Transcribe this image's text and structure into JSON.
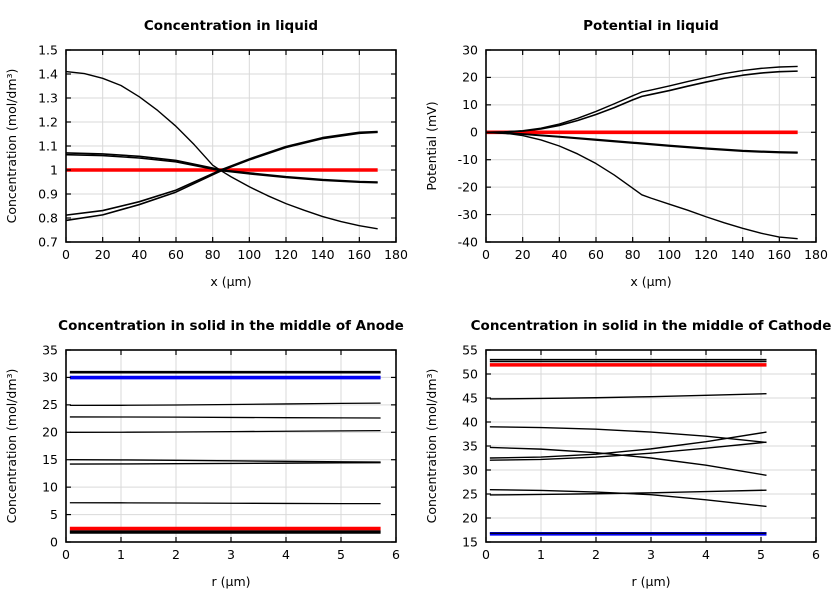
{
  "figure": {
    "background": "#ffffff",
    "layout": "2x2-plot-grid"
  },
  "colors": {
    "frame": "#000000",
    "grid": "#d9d9d9",
    "curve_black": "#000000",
    "reference_red": "#ff0000",
    "reference_blue": "#0202f5"
  },
  "chart_data": [
    {
      "id": "concentration-in-liquid",
      "type": "line",
      "title": "Concentration in liquid",
      "xlabel": "x (µm)",
      "ylabel": "Concentration (mol/dm³)",
      "xlim": [
        0,
        180
      ],
      "ylim": [
        0.7,
        1.5
      ],
      "xticks": [
        0,
        20,
        40,
        60,
        80,
        100,
        120,
        140,
        160,
        180
      ],
      "yticks": [
        0.7,
        0.8,
        0.9,
        1,
        1.1,
        1.2,
        1.3,
        1.4,
        1.5
      ],
      "grid": true,
      "legend": "none",
      "series": [
        {
          "name": "initial-reference",
          "color": "#ff0000",
          "width": 3.6,
          "x": [
            0,
            170
          ],
          "y": [
            1,
            1
          ]
        },
        {
          "name": "profile-late",
          "color": "#000000",
          "width": 1.4,
          "x": [
            0,
            10,
            20,
            30,
            40,
            50,
            60,
            70,
            80,
            85,
            90,
            100,
            110,
            120,
            130,
            140,
            150,
            160,
            170
          ],
          "y": [
            1.41,
            1.402,
            1.382,
            1.352,
            1.305,
            1.248,
            1.182,
            1.105,
            1.02,
            0.995,
            0.972,
            0.93,
            0.893,
            0.86,
            0.832,
            0.806,
            0.785,
            0.768,
            0.755
          ]
        },
        {
          "name": "profile-mid-a",
          "color": "#000000",
          "width": 1.6,
          "x": [
            0,
            20,
            40,
            60,
            80,
            85,
            100,
            120,
            140,
            160,
            170
          ],
          "y": [
            1.071,
            1.067,
            1.057,
            1.04,
            1.008,
            1.0,
            0.988,
            0.972,
            0.96,
            0.952,
            0.95
          ]
        },
        {
          "name": "profile-mid-b",
          "color": "#000000",
          "width": 1.6,
          "x": [
            0,
            20,
            40,
            60,
            80,
            85,
            100,
            120,
            140,
            160,
            170
          ],
          "y": [
            1.064,
            1.06,
            1.05,
            1.034,
            1.004,
            0.997,
            0.984,
            0.969,
            0.957,
            0.949,
            0.947
          ]
        },
        {
          "name": "profile-early-a",
          "color": "#000000",
          "width": 1.6,
          "x": [
            0,
            20,
            40,
            60,
            80,
            85,
            100,
            120,
            140,
            160,
            170
          ],
          "y": [
            0.812,
            0.831,
            0.868,
            0.916,
            0.985,
            1.002,
            1.046,
            1.098,
            1.135,
            1.157,
            1.16
          ]
        },
        {
          "name": "profile-early-b",
          "color": "#000000",
          "width": 1.6,
          "x": [
            0,
            20,
            40,
            60,
            80,
            85,
            100,
            120,
            140,
            160,
            170
          ],
          "y": [
            0.79,
            0.813,
            0.856,
            0.908,
            0.98,
            0.998,
            1.042,
            1.094,
            1.131,
            1.153,
            1.157
          ]
        }
      ]
    },
    {
      "id": "potential-in-liquid",
      "type": "line",
      "title": "Potential in liquid",
      "xlabel": "x (µm)",
      "ylabel": "Potential (mV)",
      "xlim": [
        0,
        180
      ],
      "ylim": [
        -40,
        30
      ],
      "xticks": [
        0,
        20,
        40,
        60,
        80,
        100,
        120,
        140,
        160,
        180
      ],
      "yticks": [
        -40,
        -30,
        -20,
        -10,
        0,
        10,
        20,
        30
      ],
      "grid": true,
      "legend": "none",
      "series": [
        {
          "name": "zero-reference",
          "color": "#ff0000",
          "width": 3.6,
          "x": [
            0,
            170
          ],
          "y": [
            0,
            0
          ]
        },
        {
          "name": "potential-rise-a",
          "color": "#000000",
          "width": 1.4,
          "x": [
            0,
            10,
            20,
            30,
            40,
            50,
            60,
            70,
            80,
            85,
            90,
            100,
            110,
            120,
            130,
            140,
            150,
            160,
            170
          ],
          "y": [
            0,
            0.15,
            0.6,
            1.5,
            3.0,
            5.1,
            7.6,
            10.4,
            13.3,
            14.7,
            15.4,
            16.9,
            18.5,
            20.0,
            21.4,
            22.5,
            23.3,
            23.8,
            24.0
          ]
        },
        {
          "name": "potential-rise-b",
          "color": "#000000",
          "width": 1.6,
          "x": [
            0,
            10,
            20,
            30,
            40,
            50,
            60,
            70,
            80,
            85,
            90,
            100,
            110,
            120,
            130,
            140,
            150,
            160,
            170
          ],
          "y": [
            0,
            0.1,
            0.45,
            1.2,
            2.5,
            4.3,
            6.5,
            9.0,
            11.8,
            13.1,
            13.8,
            15.2,
            16.8,
            18.3,
            19.7,
            20.8,
            21.6,
            22.1,
            22.3
          ]
        },
        {
          "name": "potential-shallow-a",
          "color": "#000000",
          "width": 1.7,
          "x": [
            0,
            20,
            40,
            60,
            80,
            100,
            120,
            140,
            160,
            170
          ],
          "y": [
            0,
            -0.7,
            -1.7,
            -2.8,
            -3.9,
            -5.0,
            -6.0,
            -6.9,
            -7.4,
            -7.5
          ]
        },
        {
          "name": "potential-shallow-b",
          "color": "#000000",
          "width": 1.7,
          "x": [
            0,
            20,
            40,
            60,
            80,
            100,
            120,
            140,
            160,
            170
          ],
          "y": [
            0,
            -0.6,
            -1.55,
            -2.6,
            -3.7,
            -4.8,
            -5.8,
            -6.7,
            -7.2,
            -7.3
          ]
        },
        {
          "name": "potential-deep",
          "color": "#000000",
          "width": 1.4,
          "x": [
            0,
            10,
            20,
            30,
            40,
            50,
            60,
            70,
            80,
            85,
            90,
            100,
            110,
            120,
            130,
            140,
            150,
            160,
            170
          ],
          "y": [
            0,
            -0.3,
            -1.2,
            -2.8,
            -5.0,
            -7.9,
            -11.4,
            -15.6,
            -20.4,
            -22.8,
            -24.0,
            -26.2,
            -28.4,
            -30.8,
            -33.0,
            -35.0,
            -36.8,
            -38.2,
            -38.8
          ]
        }
      ]
    },
    {
      "id": "concentration-solid-anode",
      "type": "line",
      "title": "Concentration in solid in the middle of Anode",
      "xlabel": "r (µm)",
      "ylabel": "Concentration (mol/dm³)",
      "xlim": [
        0,
        6
      ],
      "ylim": [
        0,
        35
      ],
      "xticks": [
        0,
        1,
        2,
        3,
        4,
        5,
        6
      ],
      "yticks": [
        0,
        5,
        10,
        15,
        20,
        25,
        30,
        35
      ],
      "grid": true,
      "legend": "none",
      "series": [
        {
          "name": "anode-level-31a",
          "color": "#000000",
          "width": 1.5,
          "x": [
            0.07,
            5.72
          ],
          "y": [
            31.05,
            31.05
          ]
        },
        {
          "name": "anode-level-31b",
          "color": "#000000",
          "width": 1.5,
          "x": [
            0.07,
            5.72
          ],
          "y": [
            30.85,
            30.85
          ]
        },
        {
          "name": "anode-blue-reference",
          "color": "#0202f5",
          "width": 3.6,
          "x": [
            0.07,
            5.72
          ],
          "y": [
            29.97,
            29.97
          ]
        },
        {
          "name": "anode-level-25",
          "color": "#000000",
          "width": 1.3,
          "x": [
            0.07,
            1,
            2,
            3,
            4,
            5,
            5.72
          ],
          "y": [
            24.9,
            24.92,
            24.98,
            25.07,
            25.17,
            25.27,
            25.32
          ]
        },
        {
          "name": "anode-level-23",
          "color": "#000000",
          "width": 1.3,
          "x": [
            0.07,
            1,
            2,
            3,
            4,
            5,
            5.72
          ],
          "y": [
            22.8,
            22.79,
            22.76,
            22.71,
            22.66,
            22.62,
            22.6
          ]
        },
        {
          "name": "anode-level-20",
          "color": "#000000",
          "width": 1.3,
          "x": [
            0.07,
            1,
            2,
            3,
            4,
            5,
            5.72
          ],
          "y": [
            20.0,
            20.01,
            20.05,
            20.12,
            20.19,
            20.26,
            20.3
          ]
        },
        {
          "name": "anode-level-15",
          "color": "#000000",
          "width": 1.4,
          "x": [
            0.07,
            1,
            2,
            3,
            4,
            5,
            5.72
          ],
          "y": [
            15.0,
            14.96,
            14.89,
            14.8,
            14.7,
            14.61,
            14.56
          ]
        },
        {
          "name": "anode-level-14",
          "color": "#000000",
          "width": 1.4,
          "x": [
            0.07,
            1,
            2,
            3,
            4,
            5,
            5.72
          ],
          "y": [
            14.2,
            14.23,
            14.28,
            14.33,
            14.38,
            14.43,
            14.46
          ]
        },
        {
          "name": "anode-level-7",
          "color": "#000000",
          "width": 1.3,
          "x": [
            0.07,
            1,
            2,
            3,
            4,
            5,
            5.72
          ],
          "y": [
            7.15,
            7.14,
            7.11,
            7.07,
            7.03,
            7.0,
            6.99
          ]
        },
        {
          "name": "anode-red-reference",
          "color": "#ff0000",
          "width": 3.6,
          "x": [
            0.07,
            5.72
          ],
          "y": [
            2.45,
            2.45
          ]
        },
        {
          "name": "anode-level-2.0",
          "color": "#000000",
          "width": 1.2,
          "x": [
            0.07,
            5.72
          ],
          "y": [
            2.02,
            2.02
          ]
        },
        {
          "name": "anode-level-1.8",
          "color": "#000000",
          "width": 1.2,
          "x": [
            0.07,
            5.72
          ],
          "y": [
            1.82,
            1.82
          ]
        },
        {
          "name": "anode-level-1.6",
          "color": "#000000",
          "width": 1.2,
          "x": [
            0.07,
            5.72
          ],
          "y": [
            1.62,
            1.62
          ]
        }
      ]
    },
    {
      "id": "concentration-solid-cathode",
      "type": "line",
      "title": "Concentration in solid in the middle of Cathode",
      "xlabel": "r (µm)",
      "ylabel": "Concentration (mol/dm³)",
      "xlim": [
        0,
        6
      ],
      "ylim": [
        15,
        55
      ],
      "xticks": [
        0,
        1,
        2,
        3,
        4,
        5,
        6
      ],
      "yticks": [
        15,
        20,
        25,
        30,
        35,
        40,
        45,
        50,
        55
      ],
      "grid": true,
      "legend": "none",
      "series": [
        {
          "name": "cathode-level-53",
          "color": "#000000",
          "width": 1.5,
          "x": [
            0.07,
            5.1
          ],
          "y": [
            53.0,
            53.0
          ]
        },
        {
          "name": "cathode-level-52.6",
          "color": "#000000",
          "width": 1.5,
          "x": [
            0.07,
            5.1
          ],
          "y": [
            52.6,
            52.6
          ]
        },
        {
          "name": "cathode-red-reference",
          "color": "#ff0000",
          "width": 3.6,
          "x": [
            0.07,
            5.1
          ],
          "y": [
            51.9,
            51.9
          ]
        },
        {
          "name": "cathode-level-45",
          "color": "#000000",
          "width": 1.4,
          "x": [
            0.07,
            1,
            2,
            3,
            4,
            5.1
          ],
          "y": [
            44.8,
            44.9,
            45.05,
            45.28,
            45.55,
            45.9
          ]
        },
        {
          "name": "cathode-fall-39",
          "color": "#000000",
          "width": 1.4,
          "x": [
            0.07,
            1,
            2,
            3,
            4,
            5.1
          ],
          "y": [
            39.0,
            38.85,
            38.5,
            37.9,
            37.05,
            35.75
          ]
        },
        {
          "name": "cathode-fall-35",
          "color": "#000000",
          "width": 1.4,
          "x": [
            0.07,
            1,
            2,
            3,
            4,
            5.1
          ],
          "y": [
            34.7,
            34.35,
            33.6,
            32.5,
            31.0,
            28.9
          ]
        },
        {
          "name": "cathode-rise-32a",
          "color": "#000000",
          "width": 1.4,
          "x": [
            0.07,
            1,
            2,
            3,
            4,
            5.1
          ],
          "y": [
            32.5,
            32.7,
            33.3,
            34.4,
            35.9,
            37.9
          ]
        },
        {
          "name": "cathode-rise-32b",
          "color": "#000000",
          "width": 1.4,
          "x": [
            0.07,
            1,
            2,
            3,
            4,
            5.1
          ],
          "y": [
            32.05,
            32.2,
            32.7,
            33.5,
            34.55,
            35.8
          ]
        },
        {
          "name": "cathode-fall-26",
          "color": "#000000",
          "width": 1.4,
          "x": [
            0.07,
            1,
            2,
            2.5,
            3,
            4,
            5.1
          ],
          "y": [
            25.9,
            25.75,
            25.4,
            25.15,
            24.85,
            23.8,
            22.4
          ]
        },
        {
          "name": "cathode-rise-25",
          "color": "#000000",
          "width": 1.4,
          "x": [
            0.07,
            1,
            2,
            2.5,
            3,
            4,
            5.1
          ],
          "y": [
            24.8,
            24.9,
            25.05,
            25.15,
            25.25,
            25.5,
            25.8
          ]
        },
        {
          "name": "cathode-blue-reference",
          "color": "#0202f5",
          "width": 3.6,
          "x": [
            0.07,
            5.1
          ],
          "y": [
            16.7,
            16.7
          ]
        },
        {
          "name": "cathode-level-16.8",
          "color": "#000000",
          "width": 1.2,
          "x": [
            0.07,
            5.1
          ],
          "y": [
            16.82,
            16.82
          ]
        }
      ]
    }
  ]
}
